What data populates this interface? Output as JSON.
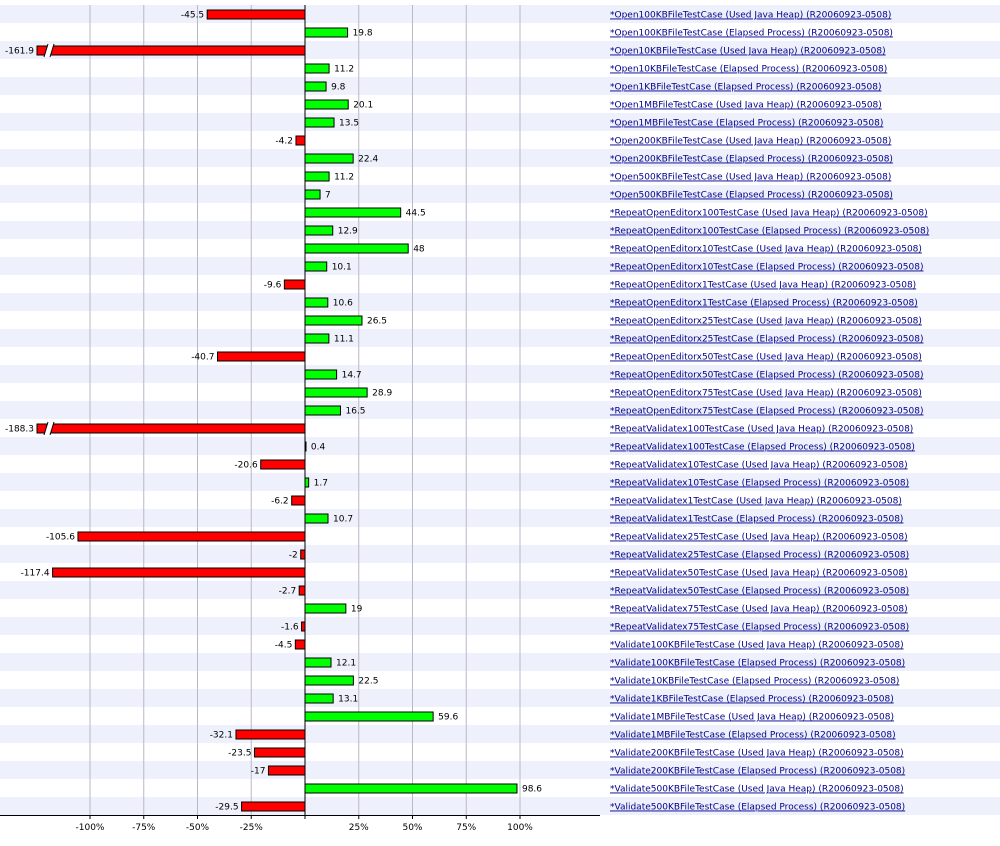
{
  "chart_data": {
    "type": "bar",
    "orientation": "horizontal",
    "x_unit": "%",
    "xlim": [
      -140,
      140
    ],
    "x_ticks": [
      {
        "value": -100,
        "label": "-100%"
      },
      {
        "value": -75,
        "label": "-75%"
      },
      {
        "value": -50,
        "label": "-50%"
      },
      {
        "value": -25,
        "label": "-25%"
      },
      {
        "value": 25,
        "label": "25%"
      },
      {
        "value": 50,
        "label": "50%"
      },
      {
        "value": 75,
        "label": "75%"
      },
      {
        "value": 100,
        "label": "100%"
      }
    ],
    "grid": true,
    "axis_break_marker": "//",
    "colors": {
      "positive": "#00ff00",
      "negative": "#ff0000",
      "band": "#eef0fb",
      "grid": "#b8b8c8",
      "link": "#00008b"
    },
    "rows": [
      {
        "label": "*Open100KBFileTestCase (Used Java Heap) (R20060923-0508)",
        "value": -45.5,
        "value_label": "-45.5"
      },
      {
        "label": "*Open100KBFileTestCase (Elapsed Process) (R20060923-0508)",
        "value": 19.8,
        "value_label": "19.8"
      },
      {
        "label": "*Open10KBFileTestCase (Used Java Heap) (R20060923-0508)",
        "value": -161.9,
        "value_label": "-161.9",
        "clipped": true
      },
      {
        "label": "*Open10KBFileTestCase (Elapsed Process) (R20060923-0508)",
        "value": 11.2,
        "value_label": "11.2"
      },
      {
        "label": "*Open1KBFileTestCase (Elapsed Process) (R20060923-0508)",
        "value": 9.8,
        "value_label": "9.8"
      },
      {
        "label": "*Open1MBFileTestCase (Used Java Heap) (R20060923-0508)",
        "value": 20.1,
        "value_label": "20.1"
      },
      {
        "label": "*Open1MBFileTestCase (Elapsed Process) (R20060923-0508)",
        "value": 13.5,
        "value_label": "13.5"
      },
      {
        "label": "*Open200KBFileTestCase (Used Java Heap) (R20060923-0508)",
        "value": -4.2,
        "value_label": "-4.2"
      },
      {
        "label": "*Open200KBFileTestCase (Elapsed Process) (R20060923-0508)",
        "value": 22.4,
        "value_label": "22.4"
      },
      {
        "label": "*Open500KBFileTestCase (Used Java Heap) (R20060923-0508)",
        "value": 11.2,
        "value_label": "11.2"
      },
      {
        "label": "*Open500KBFileTestCase (Elapsed Process) (R20060923-0508)",
        "value": 7,
        "value_label": "7"
      },
      {
        "label": "*RepeatOpenEditorx100TestCase (Used Java Heap) (R20060923-0508)",
        "value": 44.5,
        "value_label": "44.5"
      },
      {
        "label": "*RepeatOpenEditorx100TestCase (Elapsed Process) (R20060923-0508)",
        "value": 12.9,
        "value_label": "12.9"
      },
      {
        "label": "*RepeatOpenEditorx10TestCase (Used Java Heap) (R20060923-0508)",
        "value": 48,
        "value_label": "48"
      },
      {
        "label": "*RepeatOpenEditorx10TestCase (Elapsed Process) (R20060923-0508)",
        "value": 10.1,
        "value_label": "10.1"
      },
      {
        "label": "*RepeatOpenEditorx1TestCase (Used Java Heap) (R20060923-0508)",
        "value": -9.6,
        "value_label": "-9.6"
      },
      {
        "label": "*RepeatOpenEditorx1TestCase (Elapsed Process) (R20060923-0508)",
        "value": 10.6,
        "value_label": "10.6"
      },
      {
        "label": "*RepeatOpenEditorx25TestCase (Used Java Heap) (R20060923-0508)",
        "value": 26.5,
        "value_label": "26.5"
      },
      {
        "label": "*RepeatOpenEditorx25TestCase (Elapsed Process) (R20060923-0508)",
        "value": 11.1,
        "value_label": "11.1"
      },
      {
        "label": "*RepeatOpenEditorx50TestCase (Used Java Heap) (R20060923-0508)",
        "value": -40.7,
        "value_label": "-40.7"
      },
      {
        "label": "*RepeatOpenEditorx50TestCase (Elapsed Process) (R20060923-0508)",
        "value": 14.7,
        "value_label": "14.7"
      },
      {
        "label": "*RepeatOpenEditorx75TestCase (Used Java Heap) (R20060923-0508)",
        "value": 28.9,
        "value_label": "28.9"
      },
      {
        "label": "*RepeatOpenEditorx75TestCase (Elapsed Process) (R20060923-0508)",
        "value": 16.5,
        "value_label": "16.5"
      },
      {
        "label": "*RepeatValidatex100TestCase (Used Java Heap) (R20060923-0508)",
        "value": -188.3,
        "value_label": "-188.3",
        "clipped": true
      },
      {
        "label": "*RepeatValidatex100TestCase (Elapsed Process) (R20060923-0508)",
        "value": 0.4,
        "value_label": "0.4"
      },
      {
        "label": "*RepeatValidatex10TestCase (Used Java Heap) (R20060923-0508)",
        "value": -20.6,
        "value_label": "-20.6"
      },
      {
        "label": "*RepeatValidatex10TestCase (Elapsed Process) (R20060923-0508)",
        "value": 1.7,
        "value_label": "1.7"
      },
      {
        "label": "*RepeatValidatex1TestCase (Used Java Heap) (R20060923-0508)",
        "value": -6.2,
        "value_label": "-6.2"
      },
      {
        "label": "*RepeatValidatex1TestCase (Elapsed Process) (R20060923-0508)",
        "value": 10.7,
        "value_label": "10.7"
      },
      {
        "label": "*RepeatValidatex25TestCase (Used Java Heap) (R20060923-0508)",
        "value": -105.6,
        "value_label": "-105.6"
      },
      {
        "label": "*RepeatValidatex25TestCase (Elapsed Process) (R20060923-0508)",
        "value": -2,
        "value_label": "-2"
      },
      {
        "label": "*RepeatValidatex50TestCase (Used Java Heap) (R20060923-0508)",
        "value": -117.4,
        "value_label": "-117.4"
      },
      {
        "label": "*RepeatValidatex50TestCase (Elapsed Process) (R20060923-0508)",
        "value": -2.7,
        "value_label": "-2.7"
      },
      {
        "label": "*RepeatValidatex75TestCase (Used Java Heap) (R20060923-0508)",
        "value": 19,
        "value_label": "19"
      },
      {
        "label": "*RepeatValidatex75TestCase (Elapsed Process) (R20060923-0508)",
        "value": -1.6,
        "value_label": "-1.6"
      },
      {
        "label": "*Validate100KBFileTestCase (Used Java Heap) (R20060923-0508)",
        "value": -4.5,
        "value_label": "-4.5"
      },
      {
        "label": "*Validate100KBFileTestCase (Elapsed Process) (R20060923-0508)",
        "value": 12.1,
        "value_label": "12.1"
      },
      {
        "label": "*Validate10KBFileTestCase (Elapsed Process) (R20060923-0508)",
        "value": 22.5,
        "value_label": "22.5"
      },
      {
        "label": "*Validate1KBFileTestCase (Elapsed Process) (R20060923-0508)",
        "value": 13.1,
        "value_label": "13.1"
      },
      {
        "label": "*Validate1MBFileTestCase (Used Java Heap) (R20060923-0508)",
        "value": 59.6,
        "value_label": "59.6"
      },
      {
        "label": "*Validate1MBFileTestCase (Elapsed Process) (R20060923-0508)",
        "value": -32.1,
        "value_label": "-32.1"
      },
      {
        "label": "*Validate200KBFileTestCase (Used Java Heap) (R20060923-0508)",
        "value": -23.5,
        "value_label": "-23.5"
      },
      {
        "label": "*Validate200KBFileTestCase (Elapsed Process) (R20060923-0508)",
        "value": -17,
        "value_label": "-17"
      },
      {
        "label": "*Validate500KBFileTestCase (Used Java Heap) (R20060923-0508)",
        "value": 98.6,
        "value_label": "98.6"
      },
      {
        "label": "*Validate500KBFileTestCase (Elapsed Process) (R20060923-0508)",
        "value": -29.5,
        "value_label": "-29.5"
      }
    ]
  }
}
